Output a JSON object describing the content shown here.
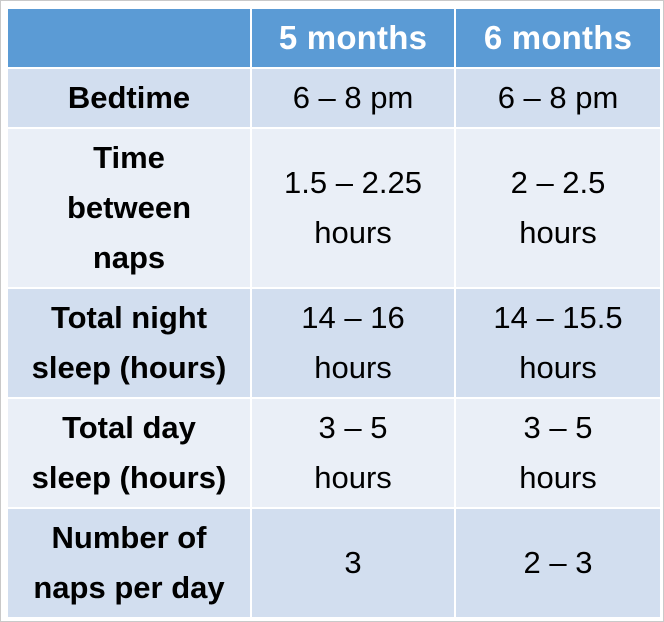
{
  "table": {
    "headers": [
      "",
      "5 months",
      "6 months"
    ],
    "rows": [
      {
        "label_lines": [
          "Bedtime"
        ],
        "five_months_lines": [
          "6 – 8 pm"
        ],
        "six_months_lines": [
          "6 – 8 pm"
        ]
      },
      {
        "label_lines": [
          "Time",
          "between",
          "naps"
        ],
        "five_months_lines": [
          "1.5 – 2.25",
          "hours"
        ],
        "six_months_lines": [
          "2 – 2.5",
          "hours"
        ]
      },
      {
        "label_lines": [
          "Total night",
          "sleep (hours)"
        ],
        "five_months_lines": [
          "14 – 16",
          "hours"
        ],
        "six_months_lines": [
          "14 – 15.5",
          "hours"
        ]
      },
      {
        "label_lines": [
          "Total day",
          "sleep (hours)"
        ],
        "five_months_lines": [
          "3 – 5",
          "hours"
        ],
        "six_months_lines": [
          "3 – 5",
          "hours"
        ]
      },
      {
        "label_lines": [
          "Number of",
          "naps per day"
        ],
        "five_months_lines": [
          "3"
        ],
        "six_months_lines": [
          "2 – 3"
        ]
      }
    ]
  },
  "colors": {
    "header_bg": "#5b9bd5",
    "row_dark_bg": "#d2deef",
    "row_light_bg": "#eaeff7",
    "header_text": "#ffffff"
  }
}
